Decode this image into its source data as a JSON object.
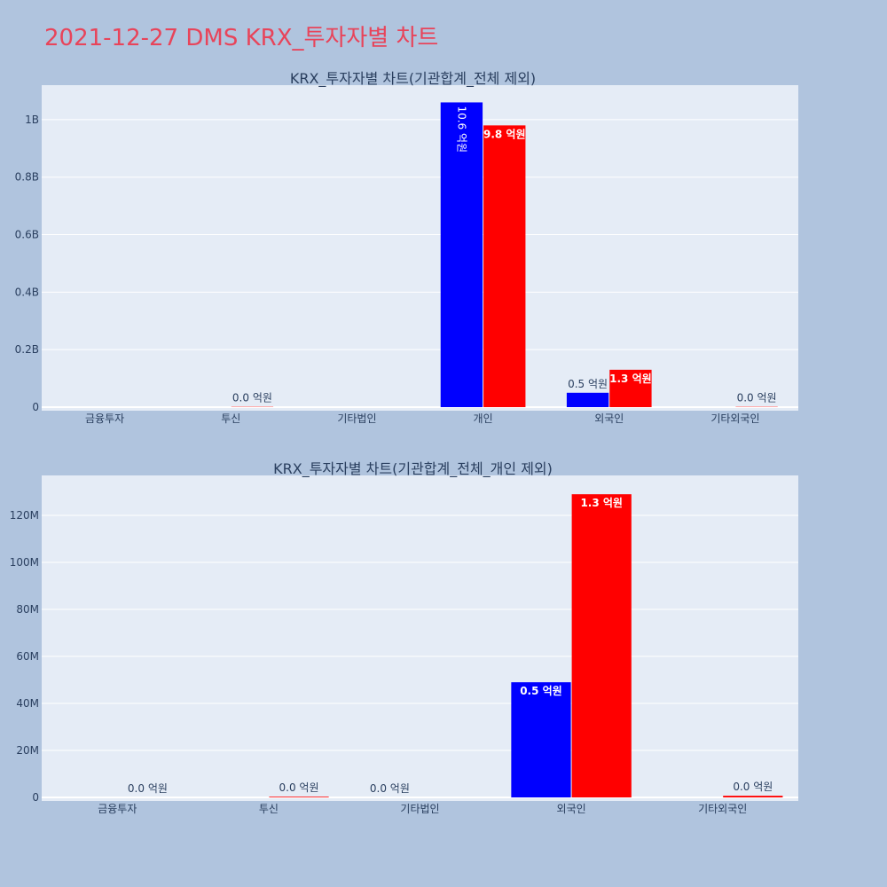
{
  "page_title": "2021-12-27 DMS KRX_투자자별 차트",
  "colors": {
    "background": "#b0c4de",
    "plot_bg": "#e5ecf6",
    "buy": "#0000ff",
    "sell": "#ff0000",
    "title": "#e8445a",
    "text": "#2a3f5f"
  },
  "chart_data": [
    {
      "type": "bar",
      "title": "KRX_투자자별 차트(기관합계_전체 제외)",
      "categories": [
        "금융투자",
        "투신",
        "기타법인",
        "개인",
        "외국인",
        "기타외국인"
      ],
      "ylim": [
        0,
        1120000000
      ],
      "yticks": [
        0,
        200000000,
        400000000,
        600000000,
        800000000,
        1000000000
      ],
      "ytick_labels": [
        "0",
        "0.2B",
        "0.4B",
        "0.6B",
        "0.8B",
        "1B"
      ],
      "grid": true,
      "legend": "none",
      "series": [
        {
          "color": "#0000ff",
          "values": [
            0,
            0,
            0,
            1060000000,
            50000000,
            0
          ],
          "labels": [
            "",
            "",
            "",
            "10.6 억원",
            "0.5 억원",
            ""
          ]
        },
        {
          "color": "#ff0000",
          "values": [
            0,
            1000000,
            0,
            980000000,
            130000000,
            1000000
          ],
          "labels": [
            "",
            "0.0 억원",
            "",
            "9.8 억원",
            "1.3 억원",
            "0.0 억원"
          ]
        }
      ]
    },
    {
      "type": "bar",
      "title": "KRX_투자자별 차트(기관합계_전체_개인 제외)",
      "categories": [
        "금융투자",
        "투신",
        "기타법인",
        "외국인",
        "기타외국인"
      ],
      "ylim": [
        0,
        137000000
      ],
      "yticks": [
        0,
        20000000,
        40000000,
        60000000,
        80000000,
        100000000,
        120000000
      ],
      "ytick_labels": [
        "0",
        "20M",
        "40M",
        "60M",
        "80M",
        "100M",
        "120M"
      ],
      "grid": true,
      "legend": "none",
      "series": [
        {
          "color": "#0000ff",
          "values": [
            0,
            0,
            0,
            49000000,
            0
          ],
          "labels": [
            "",
            "",
            "0.0 억원",
            "0.5 억원",
            ""
          ]
        },
        {
          "color": "#ff0000",
          "values": [
            0,
            300000,
            0,
            129000000,
            700000
          ],
          "labels": [
            "0.0 억원",
            "0.0 억원",
            "",
            "1.3 억원",
            "0.0 억원"
          ]
        }
      ]
    }
  ]
}
